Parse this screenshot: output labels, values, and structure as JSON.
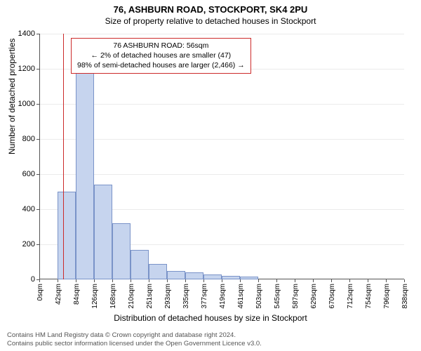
{
  "title": "76, ASHBURN ROAD, STOCKPORT, SK4 2PU",
  "subtitle": "Size of property relative to detached houses in Stockport",
  "chart": {
    "type": "histogram",
    "y_label": "Number of detached properties",
    "x_label": "Distribution of detached houses by size in Stockport",
    "ylim_min": 0,
    "ylim_max": 1400,
    "y_tick_step": 200,
    "x_min": 0,
    "x_max": 859,
    "x_tick_step": 42,
    "x_tick_unit": "sqm",
    "x_tick_labels": [
      "0sqm",
      "42sqm",
      "84sqm",
      "126sqm",
      "168sqm",
      "210sqm",
      "251sqm",
      "293sqm",
      "335sqm",
      "377sqm",
      "419sqm",
      "461sqm",
      "503sqm",
      "545sqm",
      "587sqm",
      "629sqm",
      "670sqm",
      "712sqm",
      "754sqm",
      "796sqm",
      "838sqm"
    ],
    "bar_values": [
      0,
      500,
      1180,
      540,
      320,
      170,
      90,
      50,
      40,
      30,
      20,
      15,
      0,
      0,
      0,
      0,
      0,
      0,
      0,
      0
    ],
    "bins": 20,
    "bar_fill": "#c6d4ee",
    "bar_stroke": "#7a93c8",
    "grid_color": "rgba(0,0,0,0.08)",
    "axis_color": "#555555",
    "background": "#ffffff",
    "marker": {
      "value": 56,
      "color": "#cc2a2a"
    },
    "annotation": {
      "line1": "76 ASHBURN ROAD: 56sqm",
      "line2": "← 2% of detached houses are smaller (47)",
      "line3": "98% of semi-detached houses are larger (2,466) →",
      "border_color": "#cc2a2a",
      "fontsize": 10.5
    },
    "title_fontsize": 13,
    "subtitle_fontsize": 12,
    "label_fontsize": 12,
    "tick_fontsize": 11
  },
  "footer": {
    "line1": "Contains HM Land Registry data © Crown copyright and database right 2024.",
    "line2": "Contains public sector information licensed under the Open Government Licence v3.0."
  }
}
